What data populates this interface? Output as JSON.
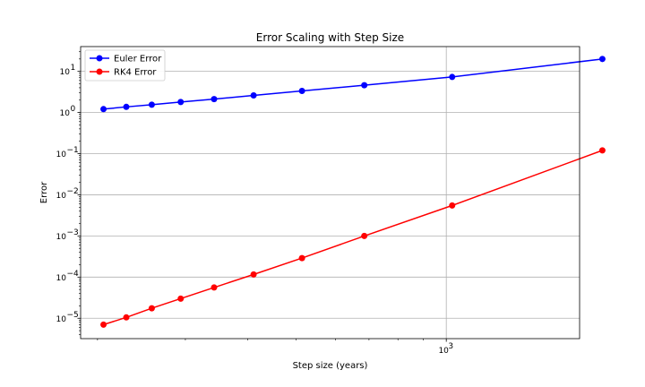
{
  "chart_data": {
    "type": "line",
    "title": "Error Scaling with Step Size",
    "xlabel": "Step size (years)",
    "ylabel": "Error",
    "xscale": "log",
    "yscale": "log",
    "xlim": [
      185,
      1850
    ],
    "ylim": [
      3.2e-06,
      40
    ],
    "grid": true,
    "legend_position": "top-left",
    "x_tick_labels": [
      {
        "value": 1000,
        "label": "10",
        "exp": "3"
      }
    ],
    "y_tick_labels": [
      {
        "value": 1e-05,
        "label": "10",
        "exp": "−5"
      },
      {
        "value": 0.0001,
        "label": "10",
        "exp": "−4"
      },
      {
        "value": 0.001,
        "label": "10",
        "exp": "−3"
      },
      {
        "value": 0.01,
        "label": "10",
        "exp": "−2"
      },
      {
        "value": 0.1,
        "label": "10",
        "exp": "−1"
      },
      {
        "value": 1,
        "label": "10",
        "exp": "0"
      },
      {
        "value": 10,
        "label": "10",
        "exp": "1"
      }
    ],
    "series": [
      {
        "name": "Euler Error",
        "color": "#0000ff",
        "x": [
          205.6,
          228.4,
          256.9,
          293.6,
          342.5,
          411.0,
          513.8,
          685.0,
          1027.5,
          2055.0
        ],
        "y": [
          1.21,
          1.37,
          1.55,
          1.8,
          2.12,
          2.6,
          3.35,
          4.6,
          7.3,
          20.0
        ]
      },
      {
        "name": "RK4 Error",
        "color": "#ff0000",
        "x": [
          205.6,
          228.4,
          256.9,
          293.6,
          342.5,
          411.0,
          513.8,
          685.0,
          1027.5,
          2055.0
        ],
        "y": [
          7e-06,
          1.05e-05,
          1.75e-05,
          3e-05,
          5.6e-05,
          0.000116,
          0.00029,
          0.001,
          0.0055,
          0.12
        ]
      }
    ]
  }
}
